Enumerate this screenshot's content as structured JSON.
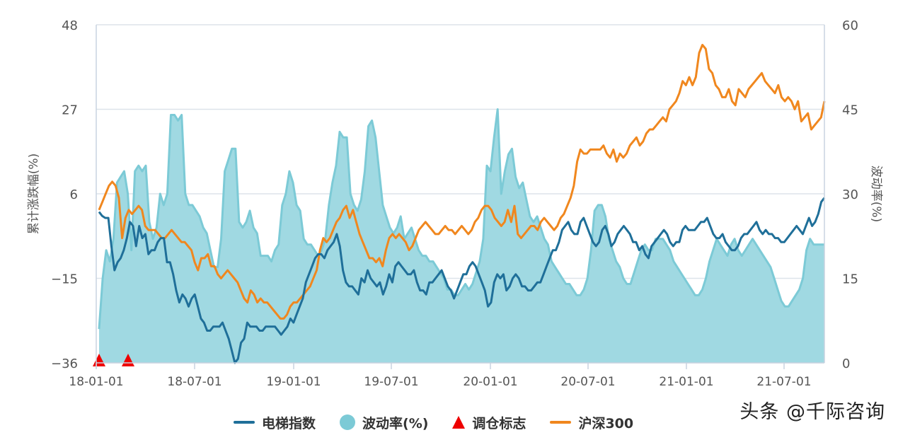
{
  "chart_data": {
    "type": "line",
    "title": "",
    "x_ticks": [
      "18-01-01",
      "18-07-01",
      "19-01-01",
      "19-07-01",
      "20-01-01",
      "20-07-01",
      "21-01-01",
      "21-07-01"
    ],
    "x_range": [
      "2018-01-01",
      "2021-09-24"
    ],
    "left_axis": {
      "label": "累计涨跌幅(%)",
      "ticks": [
        48,
        27,
        6,
        -15,
        -36
      ],
      "ylim": [
        -36,
        48
      ]
    },
    "right_axis": {
      "label": "波动率(%)",
      "ticks": [
        60,
        45,
        30,
        15,
        0
      ],
      "ylim": [
        0,
        60
      ]
    },
    "grid": "horizontal",
    "legend_position": "bottom",
    "colors": {
      "elevator": "#1f6f99",
      "volatility_fill": "#a0d9e2",
      "volatility_line": "#7ccad6",
      "marker": "#ee0000",
      "hs300": "#f0871e",
      "grid": "#dde3ea",
      "axis": "#c8d3e0"
    },
    "series": [
      {
        "name": "电梯指数",
        "axis": "left",
        "type": "line",
        "values": [
          1.5,
          0.5,
          0,
          0,
          -7,
          -13,
          -11,
          -10,
          -8,
          -5,
          -1,
          -2,
          -7,
          -2,
          -5,
          -4,
          -9,
          -8,
          -8,
          -6,
          -5,
          -5,
          -11,
          -11,
          -14,
          -18,
          -21,
          -19,
          -20,
          -22,
          -20,
          -19,
          -22,
          -25,
          -26,
          -28,
          -28,
          -27,
          -27,
          -27,
          -26,
          -28,
          -30,
          -33,
          -36,
          -35,
          -31,
          -30,
          -26,
          -27,
          -27,
          -27,
          -28,
          -28,
          -27,
          -27,
          -27,
          -27,
          -28,
          -29,
          -28,
          -27,
          -25,
          -26,
          -24,
          -22,
          -20,
          -16,
          -14,
          -12,
          -10,
          -9,
          -9,
          -10,
          -8,
          -7,
          -6,
          -4,
          -7,
          -13,
          -16,
          -17,
          -17,
          -18,
          -19,
          -15,
          -16,
          -13,
          -15,
          -16,
          -17,
          -16,
          -19,
          -17,
          -14,
          -16,
          -12,
          -11,
          -12,
          -13,
          -14,
          -14,
          -13,
          -16,
          -18,
          -18,
          -19,
          -16,
          -16,
          -15,
          -14,
          -13,
          -15,
          -17,
          -18,
          -20,
          -18,
          -16,
          -14,
          -14,
          -12,
          -11,
          -12,
          -14,
          -16,
          -18,
          -22,
          -21,
          -16,
          -14,
          -15,
          -14,
          -18,
          -17,
          -15,
          -14,
          -15,
          -17,
          -17,
          -18,
          -18,
          -17,
          -16,
          -16,
          -14,
          -12,
          -10,
          -8,
          -8,
          -6,
          -3,
          -2,
          -1,
          -3,
          -4,
          -4,
          -1,
          0,
          -2,
          -4,
          -6,
          -7,
          -6,
          -3,
          -2,
          -4,
          -7,
          -6,
          -4,
          -3,
          -2,
          -3,
          -4,
          -6,
          -6,
          -8,
          -7,
          -9,
          -10,
          -7,
          -6,
          -5,
          -4,
          -3,
          -4,
          -6,
          -7,
          -6,
          -6,
          -3,
          -2,
          -3,
          -3,
          -3,
          -2,
          -1,
          -1,
          0,
          -2,
          -4,
          -5,
          -5,
          -4,
          -6,
          -7,
          -8,
          -8,
          -7,
          -5,
          -4,
          -4,
          -3,
          -2,
          -1,
          -3,
          -4,
          -3,
          -4,
          -4,
          -5,
          -5,
          -6,
          -6,
          -5,
          -4,
          -3,
          -2,
          -3,
          -4,
          -2,
          0,
          -2,
          -1,
          1,
          4,
          5
        ]
      },
      {
        "name": "波动率(%)",
        "axis": "right",
        "type": "area",
        "values": [
          6,
          15,
          20,
          18,
          22,
          32,
          33,
          34,
          30,
          20,
          34,
          35,
          34,
          35,
          25,
          22,
          24,
          30,
          28,
          30,
          44,
          44,
          43,
          44,
          30,
          28,
          28,
          27,
          26,
          24,
          23,
          20,
          17,
          17,
          22,
          34,
          36,
          38,
          38,
          25,
          24,
          25,
          27,
          24,
          23,
          19,
          19,
          19,
          18,
          20,
          21,
          28,
          30,
          34,
          32,
          28,
          27,
          22,
          21,
          21,
          20,
          19,
          20,
          22,
          28,
          32,
          35,
          41,
          40,
          40,
          30,
          28,
          27,
          29,
          34,
          42,
          43,
          40,
          34,
          28,
          26,
          24,
          23,
          24,
          26,
          22,
          23,
          24,
          22,
          20,
          19,
          19,
          18,
          18,
          17,
          16,
          15,
          13,
          13,
          12,
          12,
          13,
          14,
          13,
          14,
          16,
          18,
          22,
          35,
          34,
          40,
          45,
          30,
          34,
          37,
          38,
          33,
          31,
          32,
          29,
          26,
          25,
          26,
          24,
          22,
          21,
          18,
          17,
          16,
          15,
          14,
          14,
          13,
          12,
          12,
          13,
          15,
          20,
          27,
          28,
          28,
          26,
          22,
          20,
          18,
          17,
          15,
          14,
          14,
          16,
          18,
          20,
          21,
          20,
          20,
          22,
          22,
          22,
          21,
          20,
          18,
          17,
          16,
          15,
          14,
          13,
          12,
          12,
          13,
          15,
          18,
          20,
          22,
          21,
          20,
          19,
          21,
          22,
          20,
          19,
          20,
          21,
          22,
          21,
          20,
          19,
          18,
          17,
          15,
          13,
          11,
          10,
          10,
          11,
          12,
          13,
          15,
          20,
          22,
          21,
          21,
          21,
          21
        ]
      },
      {
        "name": "调仓标志",
        "axis": "left",
        "type": "scatter",
        "marker": "triangle",
        "x": [
          "2018-01-02",
          "2018-03-05"
        ],
        "values": [
          -36,
          -36
        ]
      },
      {
        "name": "沪深300",
        "axis": "left",
        "type": "line",
        "values": [
          2,
          4,
          6,
          8,
          9,
          8,
          5,
          -5,
          0,
          2,
          1,
          2,
          3,
          2,
          -2,
          -3,
          -3,
          -3,
          -4,
          -5,
          -5,
          -4,
          -3,
          -4,
          -5,
          -6,
          -6,
          -7,
          -8,
          -11,
          -13,
          -10,
          -10,
          -9,
          -12,
          -12,
          -14,
          -15,
          -14,
          -13,
          -14,
          -15,
          -16,
          -18,
          -20,
          -21,
          -18,
          -19,
          -21,
          -20,
          -21,
          -21,
          -22,
          -23,
          -24,
          -25,
          -25,
          -24,
          -22,
          -21,
          -21,
          -20,
          -19,
          -18,
          -17,
          -15,
          -13,
          -8,
          -5,
          -6,
          -5,
          -3,
          -1,
          0,
          2,
          3,
          0,
          2,
          -1,
          -4,
          -6,
          -8,
          -10,
          -10,
          -11,
          -10,
          -12,
          -8,
          -5,
          -4,
          -5,
          -4,
          -5,
          -6,
          -8,
          -7,
          -5,
          -3,
          -2,
          -1,
          -2,
          -3,
          -4,
          -4,
          -3,
          -2,
          -3,
          -3,
          -4,
          -3,
          -2,
          -3,
          -4,
          -3,
          -1,
          0,
          2,
          3,
          3,
          2,
          0,
          -1,
          -2,
          -1,
          2,
          -1,
          3,
          -4,
          -5,
          -4,
          -3,
          -2,
          -2,
          -3,
          -1,
          0,
          -1,
          -2,
          -3,
          -2,
          0,
          1,
          3,
          5,
          8,
          14,
          17,
          16,
          16,
          17,
          17,
          17,
          17,
          18,
          16,
          15,
          17,
          14,
          16,
          15,
          16,
          18,
          19,
          20,
          18,
          19,
          21,
          22,
          22,
          23,
          24,
          25,
          24,
          27,
          28,
          29,
          31,
          34,
          33,
          35,
          33,
          35,
          41,
          43,
          42,
          37,
          36,
          33,
          32,
          30,
          30,
          32,
          29,
          28,
          32,
          31,
          30,
          32,
          33,
          34,
          35,
          36,
          34,
          33,
          32,
          31,
          33,
          30,
          29,
          30,
          29,
          27,
          29,
          24,
          25,
          26,
          22,
          23,
          24,
          25,
          29
        ]
      }
    ]
  },
  "axes": {
    "left_title": "累计涨跌幅(%)",
    "right_title": "波动率(%)",
    "left_ticks": [
      "48",
      "27",
      "6",
      "-15",
      "-36"
    ],
    "right_ticks": [
      "60",
      "45",
      "30",
      "15",
      "0"
    ],
    "x_ticks": [
      "18-01-01",
      "18-07-01",
      "19-01-01",
      "19-07-01",
      "20-01-01",
      "20-07-01",
      "21-01-01",
      "21-07-01"
    ]
  },
  "legend": {
    "elevator": "电梯指数",
    "volatility": "波动率(%)",
    "rebalance": "调仓标志",
    "hs300": "沪深300"
  },
  "watermark": "头条 @千际咨询"
}
